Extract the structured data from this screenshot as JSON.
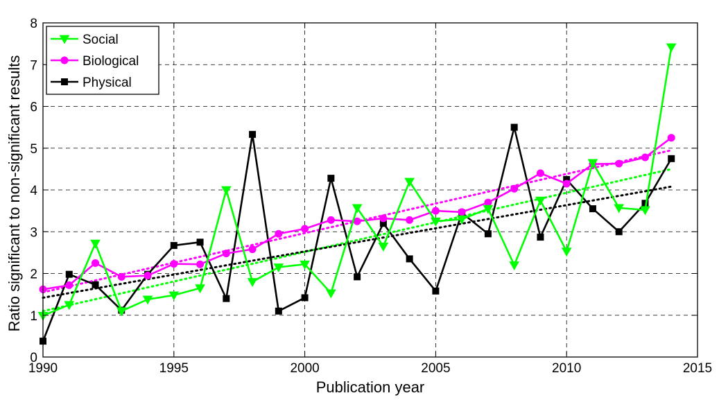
{
  "chart_data": {
    "type": "line",
    "title": "",
    "xlabel": "Publication year",
    "ylabel": "Ratio significant to non-significant results",
    "xlim": [
      1990,
      2015
    ],
    "ylim": [
      0,
      8
    ],
    "x_ticks": [
      1990,
      1995,
      2000,
      2005,
      2010,
      2015
    ],
    "y_ticks": [
      0,
      1,
      2,
      3,
      4,
      5,
      6,
      7,
      8
    ],
    "grid": true,
    "legend_position": "top-left",
    "x": [
      1990,
      1991,
      1992,
      1993,
      1994,
      1995,
      1996,
      1997,
      1998,
      1999,
      2000,
      2001,
      2002,
      2003,
      2004,
      2005,
      2006,
      2007,
      2008,
      2009,
      2010,
      2011,
      2012,
      2013,
      2014
    ],
    "series": [
      {
        "name": "Social",
        "color": "#00ff00",
        "marker": "triangle-down",
        "values": [
          0.99,
          1.25,
          2.72,
          1.1,
          1.38,
          1.48,
          1.65,
          4.0,
          1.8,
          2.15,
          2.22,
          1.53,
          3.57,
          2.65,
          4.2,
          3.25,
          3.3,
          3.55,
          2.2,
          3.75,
          2.53,
          4.65,
          3.57,
          3.52,
          7.42
        ],
        "trend": [
          1.1,
          4.5
        ]
      },
      {
        "name": "Biological",
        "color": "#ff00ff",
        "marker": "circle",
        "values": [
          1.62,
          1.72,
          2.25,
          1.92,
          1.95,
          2.23,
          2.22,
          2.48,
          2.58,
          2.95,
          3.07,
          3.28,
          3.25,
          3.32,
          3.28,
          3.5,
          3.47,
          3.7,
          4.03,
          4.4,
          4.15,
          4.62,
          4.63,
          4.78,
          5.25
        ],
        "trend": [
          1.55,
          4.95
        ]
      },
      {
        "name": "Physical",
        "color": "#000000",
        "marker": "square",
        "values": [
          0.38,
          1.98,
          1.73,
          1.12,
          1.98,
          2.67,
          2.75,
          1.4,
          5.33,
          1.1,
          1.42,
          4.28,
          1.92,
          3.2,
          2.35,
          1.58,
          3.45,
          2.95,
          5.5,
          2.87,
          4.25,
          3.55,
          3.0,
          3.68,
          4.75
        ],
        "trend": [
          1.42,
          4.08
        ]
      }
    ]
  }
}
